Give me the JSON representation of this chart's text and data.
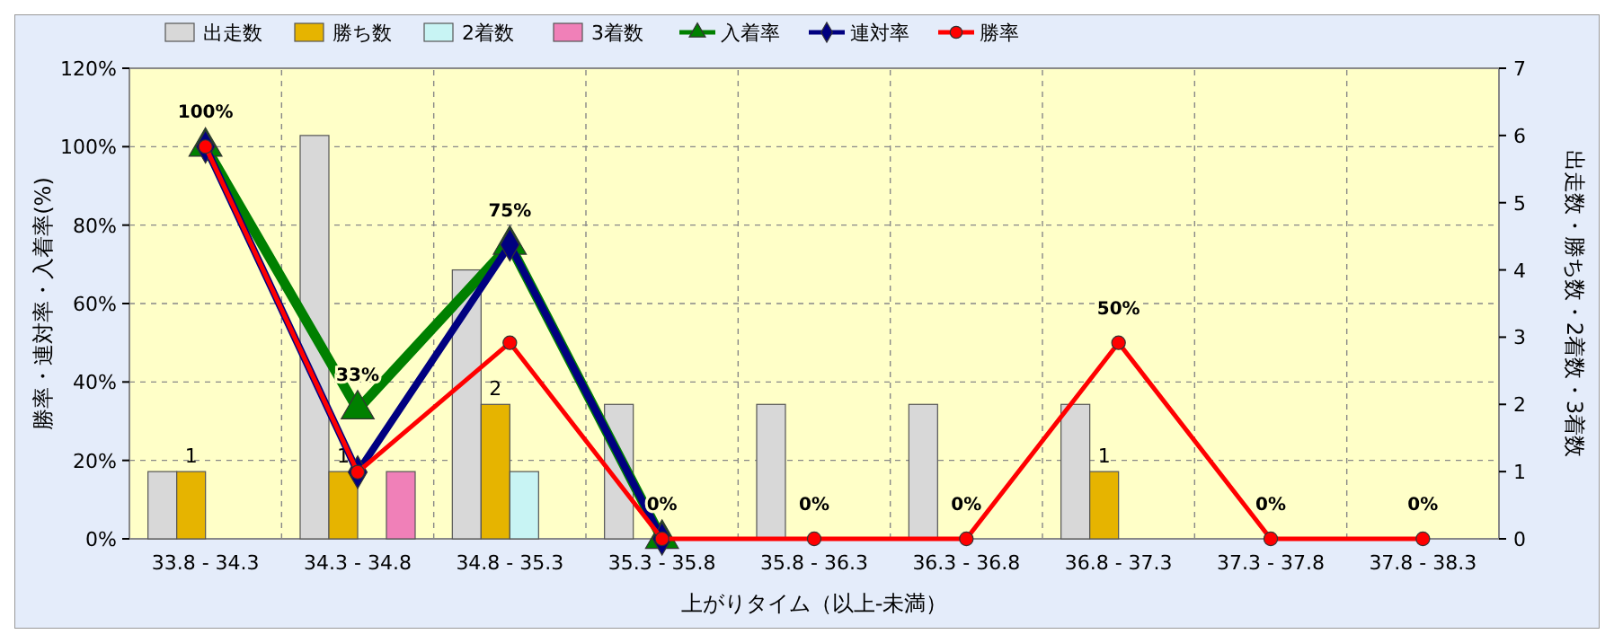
{
  "chart_data": {
    "type": "bar",
    "xlabel": "上がりタイム（以上-未満）",
    "ylabel": "勝率・連対率・入着率(%)",
    "y2label": "出走数・勝ち数・2着数・3着数",
    "categories": [
      "33.8 - 34.3",
      "34.3 - 34.8",
      "34.8 - 35.3",
      "35.3 - 35.8",
      "35.8 - 36.3",
      "36.3 - 36.8",
      "36.8 - 37.3",
      "37.3 - 37.8",
      "37.8 - 38.3"
    ],
    "ylim": [
      0,
      120
    ],
    "yticks": [
      {
        "value": 0,
        "label": "0%"
      },
      {
        "value": 20,
        "label": "20%"
      },
      {
        "value": 40,
        "label": "40%"
      },
      {
        "value": 60,
        "label": "60%"
      },
      {
        "value": 80,
        "label": "80%"
      },
      {
        "value": 100,
        "label": "100%"
      },
      {
        "value": 120,
        "label": "120%"
      }
    ],
    "y2lim": [
      0,
      7
    ],
    "y2ticks": [
      0,
      1,
      2,
      3,
      4,
      5,
      6,
      7
    ],
    "grid": true,
    "legend": "top",
    "series": [
      {
        "name": "出走数",
        "axis": "y2",
        "color": "#d8d8d8",
        "values": [
          1,
          6,
          4,
          2,
          2,
          2,
          2,
          0,
          0
        ]
      },
      {
        "name": "勝ち数",
        "axis": "y2",
        "color": "#e6b400",
        "values": [
          1,
          1,
          2,
          0,
          0,
          0,
          1,
          0,
          0
        ],
        "value_labels": [
          "1",
          "1",
          "2",
          null,
          null,
          null,
          "1",
          null,
          null
        ]
      },
      {
        "name": "2着数",
        "axis": "y2",
        "color": "#c8f4f4",
        "values": [
          0,
          0,
          1,
          0,
          0,
          0,
          0,
          0,
          0
        ]
      },
      {
        "name": "3着数",
        "axis": "y2",
        "color": "#f080b8",
        "values": [
          0,
          1,
          0,
          0,
          0,
          0,
          0,
          0,
          0
        ]
      },
      {
        "name": "入着率",
        "type": "line",
        "color": "#008000",
        "marker": "triangle",
        "line_style": "solid",
        "values": [
          100,
          33,
          75,
          0,
          null,
          null,
          null,
          null,
          null
        ],
        "value_labels": [
          "100%",
          "33%",
          "75%",
          null,
          null,
          null,
          null,
          null,
          null
        ]
      },
      {
        "name": "連対率",
        "type": "line",
        "color": "#000080",
        "marker": "diamond",
        "line_style": "solid",
        "values": [
          100,
          17,
          75,
          0,
          null,
          null,
          null,
          null,
          null
        ]
      },
      {
        "name": "勝率",
        "type": "line",
        "color": "#ff0000",
        "marker": "circle",
        "line_style": "solid",
        "values": [
          100,
          17,
          50,
          0,
          0,
          0,
          50,
          0,
          0
        ],
        "value_labels": [
          null,
          null,
          null,
          "0%",
          "0%",
          "0%",
          "50%",
          "0%",
          "0%"
        ]
      }
    ]
  }
}
